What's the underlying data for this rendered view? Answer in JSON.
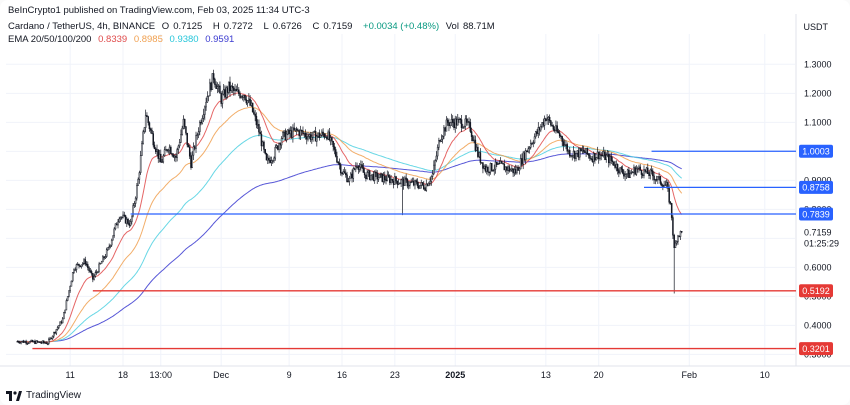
{
  "header": {
    "publisher": "BeInCrypto1 published on TradingView.com, Feb 03, 2025 11:34 UTC-3",
    "symbol": "Cardano / TetherUS, 4h, BINANCE",
    "o_label": "O",
    "o_val": "0.7125",
    "h_label": "H",
    "h_val": "0.7272",
    "l_label": "L",
    "l_val": "0.6726",
    "c_label": "C",
    "c_val": "0.7159",
    "change": "+0.0034 (+0.48%)",
    "vol_label": "Vol",
    "vol_val": "88.71M",
    "ema_label": "EMA 20/50/100/200",
    "ema_vals": [
      "0.8339",
      "0.8985",
      "0.9380",
      "0.9591"
    ]
  },
  "currency": "USDT",
  "colors": {
    "ema20": "#e04b4b",
    "ema50": "#f0a050",
    "ema100": "#4dd0e1",
    "ema200": "#3a3ad0",
    "resistance": "#2962ff",
    "support": "#e53935",
    "candle": "#131722"
  },
  "chart_data": {
    "type": "candlestick",
    "title": "Cardano / TetherUS, 4h, BINANCE",
    "ylim": [
      0.26,
      1.37
    ],
    "y_ticks": [
      0.3,
      0.4,
      0.5,
      0.6,
      0.7,
      0.8,
      0.9,
      1.0,
      1.1,
      1.2,
      1.3
    ],
    "y_tick_labels": [
      "0.3000",
      "0.4000",
      "0.5000",
      "0.6000",
      "0.7000",
      "0.8000",
      "0.9000",
      "1.0000",
      "1.1000",
      "1.2000",
      "1.3000"
    ],
    "x_ticks": [
      "11",
      "18",
      "13:00",
      "Dec",
      "9",
      "16",
      "23",
      "2025",
      "13",
      "20",
      "Feb",
      "10"
    ],
    "x_tick_days": [
      3,
      10,
      15,
      23,
      32,
      39,
      46,
      54,
      66,
      73,
      85,
      95
    ],
    "x_range_days": [
      -5.5,
      99
    ],
    "price_anchors": [
      [
        -4,
        0.345
      ],
      [
        0,
        0.34
      ],
      [
        2,
        0.42
      ],
      [
        3.5,
        0.6
      ],
      [
        5,
        0.62
      ],
      [
        6,
        0.56
      ],
      [
        8,
        0.66
      ],
      [
        9.5,
        0.78
      ],
      [
        11,
        0.75
      ],
      [
        12,
        0.9
      ],
      [
        13,
        1.13
      ],
      [
        14,
        1.04
      ],
      [
        15,
        0.96
      ],
      [
        16,
        1.02
      ],
      [
        17,
        0.98
      ],
      [
        18,
        1.1
      ],
      [
        19,
        0.96
      ],
      [
        20,
        1.08
      ],
      [
        21,
        1.18
      ],
      [
        22,
        1.26
      ],
      [
        23,
        1.18
      ],
      [
        24,
        1.22
      ],
      [
        25,
        1.2
      ],
      [
        26,
        1.2
      ],
      [
        27,
        1.15
      ],
      [
        28,
        1.07
      ],
      [
        29,
        0.96
      ],
      [
        30,
        0.99
      ],
      [
        31,
        1.05
      ],
      [
        33,
        1.07
      ],
      [
        35,
        1.05
      ],
      [
        37,
        1.06
      ],
      [
        38,
        1.0
      ],
      [
        39,
        0.93
      ],
      [
        40,
        0.9
      ],
      [
        41,
        0.96
      ],
      [
        42,
        0.92
      ],
      [
        44,
        0.91
      ],
      [
        46,
        0.9
      ],
      [
        48,
        0.89
      ],
      [
        50,
        0.88
      ],
      [
        51,
        0.92
      ],
      [
        52,
        1.05
      ],
      [
        53,
        1.1
      ],
      [
        54,
        1.1
      ],
      [
        55,
        1.1
      ],
      [
        56,
        1.08
      ],
      [
        57,
        0.99
      ],
      [
        58,
        0.94
      ],
      [
        60,
        0.95
      ],
      [
        62,
        0.93
      ],
      [
        64,
        1.03
      ],
      [
        65,
        1.07
      ],
      [
        66,
        1.12
      ],
      [
        67,
        1.08
      ],
      [
        68,
        1.05
      ],
      [
        69,
        1.0
      ],
      [
        70,
        0.99
      ],
      [
        71,
        1.0
      ],
      [
        72,
        0.98
      ],
      [
        73,
        0.99
      ],
      [
        74,
        0.98
      ],
      [
        75,
        0.96
      ],
      [
        76,
        0.93
      ],
      [
        77,
        0.92
      ],
      [
        78,
        0.94
      ],
      [
        79,
        0.93
      ],
      [
        80,
        0.92
      ],
      [
        81,
        0.9
      ],
      [
        82,
        0.88
      ],
      [
        82.6,
        0.8
      ],
      [
        83,
        0.66
      ],
      [
        83.4,
        0.71
      ],
      [
        84,
        0.72
      ]
    ],
    "wick_events": [
      {
        "day": 47,
        "low": 0.78
      },
      {
        "day": 83,
        "low": 0.51
      }
    ],
    "horizontal_levels": [
      {
        "label": "1.0003",
        "value": 1.0003,
        "start_day": 80,
        "color": "#2962ff"
      },
      {
        "label": "0.8758",
        "value": 0.8758,
        "start_day": 79,
        "color": "#2962ff"
      },
      {
        "label": "0.7839",
        "value": 0.7839,
        "start_day": 11,
        "color": "#2962ff"
      },
      {
        "label": "0.5192",
        "value": 0.5192,
        "start_day": 6,
        "color": "#e53935"
      },
      {
        "label": "0.3201",
        "value": 0.3201,
        "start_day": -2,
        "color": "#e53935"
      }
    ],
    "current_price": {
      "label": "0.7159",
      "value": 0.7159,
      "countdown": "01:25:29"
    },
    "ema_series": [
      {
        "name": "EMA 20",
        "value": 0.8339
      },
      {
        "name": "EMA 50",
        "value": 0.8985
      },
      {
        "name": "EMA 100",
        "value": 0.938
      },
      {
        "name": "EMA 200",
        "value": 0.9591
      }
    ]
  },
  "footer": {
    "brand": "TradingView"
  }
}
